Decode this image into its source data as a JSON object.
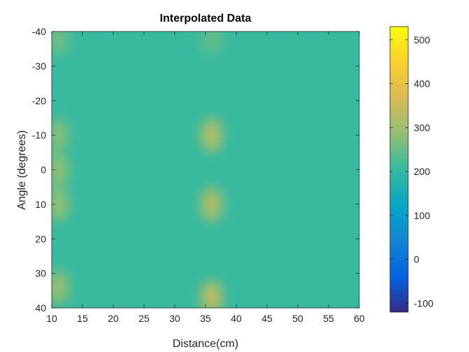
{
  "chart_data": {
    "type": "heatmap",
    "title": "Interpolated Data",
    "xlabel": "Distance(cm)",
    "ylabel": "Angle (degrees)",
    "xlim": [
      10,
      60
    ],
    "ylim": [
      -40,
      40
    ],
    "y_direction": "reverse",
    "xticks": [
      10,
      15,
      20,
      25,
      30,
      35,
      40,
      45,
      50,
      55,
      60
    ],
    "yticks": [
      -40,
      -30,
      -20,
      -10,
      0,
      10,
      20,
      30,
      40
    ],
    "colorbar": {
      "ticks": [
        -100,
        0,
        100,
        200,
        300,
        400,
        500
      ],
      "clim": [
        -120,
        530
      ],
      "colormap": "parula"
    },
    "base_value": 205,
    "hotspots": [
      {
        "distance": 11,
        "angle": -38,
        "value": 255
      },
      {
        "distance": 11,
        "angle": -10,
        "value": 275
      },
      {
        "distance": 11,
        "angle": 0,
        "value": 285
      },
      {
        "distance": 11,
        "angle": 10,
        "value": 290
      },
      {
        "distance": 11,
        "angle": 34,
        "value": 295
      },
      {
        "distance": 36,
        "angle": -38,
        "value": 245
      },
      {
        "distance": 36,
        "angle": -10,
        "value": 325
      },
      {
        "distance": 36,
        "angle": 10,
        "value": 325
      },
      {
        "distance": 36,
        "angle": 37,
        "value": 340
      }
    ]
  }
}
